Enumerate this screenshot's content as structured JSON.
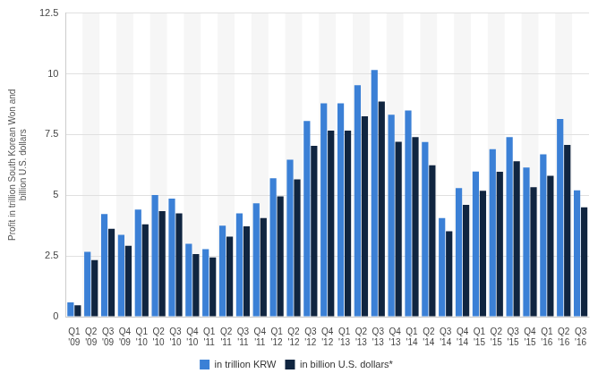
{
  "chart_data": {
    "type": "bar",
    "y_label": "Profit in trillion South Korean Won and billion U.S. dollars",
    "categories": [
      "Q1 '09",
      "Q2 '09",
      "Q3 '09",
      "Q4 '09",
      "Q1 '10",
      "Q2 '10",
      "Q3 '10",
      "Q4 '10",
      "Q1 '11",
      "Q2 '11",
      "Q3 '11",
      "Q4 '11",
      "Q1 '12",
      "Q2 '12",
      "Q3 '12",
      "Q4 '12",
      "Q1 '13",
      "Q2 '13",
      "Q3 '13",
      "Q4 '13",
      "Q1 '14",
      "Q2 '14",
      "Q3 '14",
      "Q4 '14",
      "Q1 '15",
      "Q2 '15",
      "Q3 '15",
      "Q4 '15",
      "Q1 '16",
      "Q2 '16",
      "Q3 '16"
    ],
    "series": [
      {
        "name": "in trillion KRW",
        "color": "#3b80d6",
        "values": [
          0.59,
          2.67,
          4.23,
          3.37,
          4.41,
          5.01,
          4.86,
          3.0,
          2.78,
          3.75,
          4.25,
          4.67,
          5.7,
          6.46,
          8.06,
          8.78,
          8.78,
          9.53,
          10.16,
          8.31,
          8.49,
          7.19,
          4.06,
          5.29,
          5.98,
          6.9,
          7.39,
          6.14,
          6.68,
          8.14,
          5.2
        ]
      },
      {
        "name": "in billion U.S. dollars*",
        "color": "#102540",
        "values": [
          0.47,
          2.33,
          3.62,
          2.92,
          3.8,
          4.35,
          4.25,
          2.58,
          2.44,
          3.3,
          3.72,
          4.06,
          4.95,
          5.65,
          7.03,
          7.66,
          7.66,
          8.25,
          8.86,
          7.2,
          7.39,
          6.23,
          3.52,
          4.6,
          5.18,
          5.97,
          6.4,
          5.33,
          5.8,
          7.07,
          4.5
        ]
      }
    ],
    "ylim": [
      0,
      12.5
    ],
    "yticks": [
      0,
      2.5,
      5,
      7.5,
      10,
      12.5
    ],
    "grid": true,
    "legend": "bottom"
  }
}
